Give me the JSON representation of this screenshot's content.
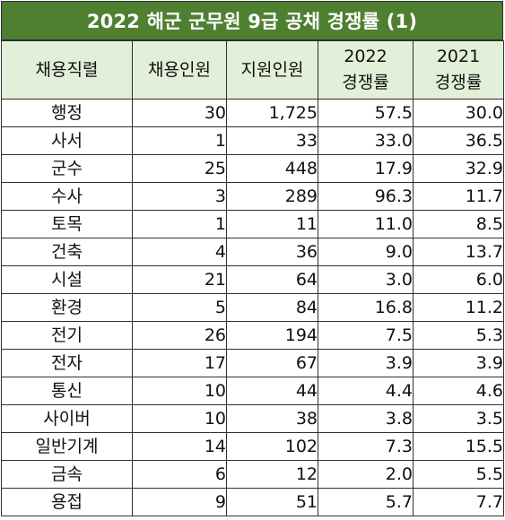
{
  "title": "2022 해군 군무원 9급 공채 경쟁률 (1)",
  "header": {
    "job": "채용직렬",
    "hire": "채용인원",
    "apply": "지원인원",
    "rate2022_year": "2022",
    "rate2022_label": "경쟁률",
    "rate2021_year": "2021",
    "rate2021_label": "경쟁률"
  },
  "rows": [
    {
      "job": "행정",
      "hire": "30",
      "apply": "1,725",
      "rate2022": "57.5",
      "rate2021": "30.0"
    },
    {
      "job": "사서",
      "hire": "1",
      "apply": "33",
      "rate2022": "33.0",
      "rate2021": "36.5"
    },
    {
      "job": "군수",
      "hire": "25",
      "apply": "448",
      "rate2022": "17.9",
      "rate2021": "32.9"
    },
    {
      "job": "수사",
      "hire": "3",
      "apply": "289",
      "rate2022": "96.3",
      "rate2021": "11.7"
    },
    {
      "job": "토목",
      "hire": "1",
      "apply": "11",
      "rate2022": "11.0",
      "rate2021": "8.5"
    },
    {
      "job": "건축",
      "hire": "4",
      "apply": "36",
      "rate2022": "9.0",
      "rate2021": "13.7"
    },
    {
      "job": "시설",
      "hire": "21",
      "apply": "64",
      "rate2022": "3.0",
      "rate2021": "6.0"
    },
    {
      "job": "환경",
      "hire": "5",
      "apply": "84",
      "rate2022": "16.8",
      "rate2021": "11.2"
    },
    {
      "job": "전기",
      "hire": "26",
      "apply": "194",
      "rate2022": "7.5",
      "rate2021": "5.3"
    },
    {
      "job": "전자",
      "hire": "17",
      "apply": "67",
      "rate2022": "3.9",
      "rate2021": "3.9"
    },
    {
      "job": "통신",
      "hire": "10",
      "apply": "44",
      "rate2022": "4.4",
      "rate2021": "4.6"
    },
    {
      "job": "사이버",
      "hire": "10",
      "apply": "38",
      "rate2022": "3.8",
      "rate2021": "3.5"
    },
    {
      "job": "일반기계",
      "hire": "14",
      "apply": "102",
      "rate2022": "7.3",
      "rate2021": "15.5"
    },
    {
      "job": "금속",
      "hire": "6",
      "apply": "12",
      "rate2022": "2.0",
      "rate2021": "5.5"
    },
    {
      "job": "용접",
      "hire": "9",
      "apply": "51",
      "rate2022": "5.7",
      "rate2021": "7.7"
    }
  ],
  "colors": {
    "title_background": "#4f7f31",
    "title_text": "#ffffff",
    "header_background": "#e2efd9",
    "border": "#2f2f2f"
  }
}
